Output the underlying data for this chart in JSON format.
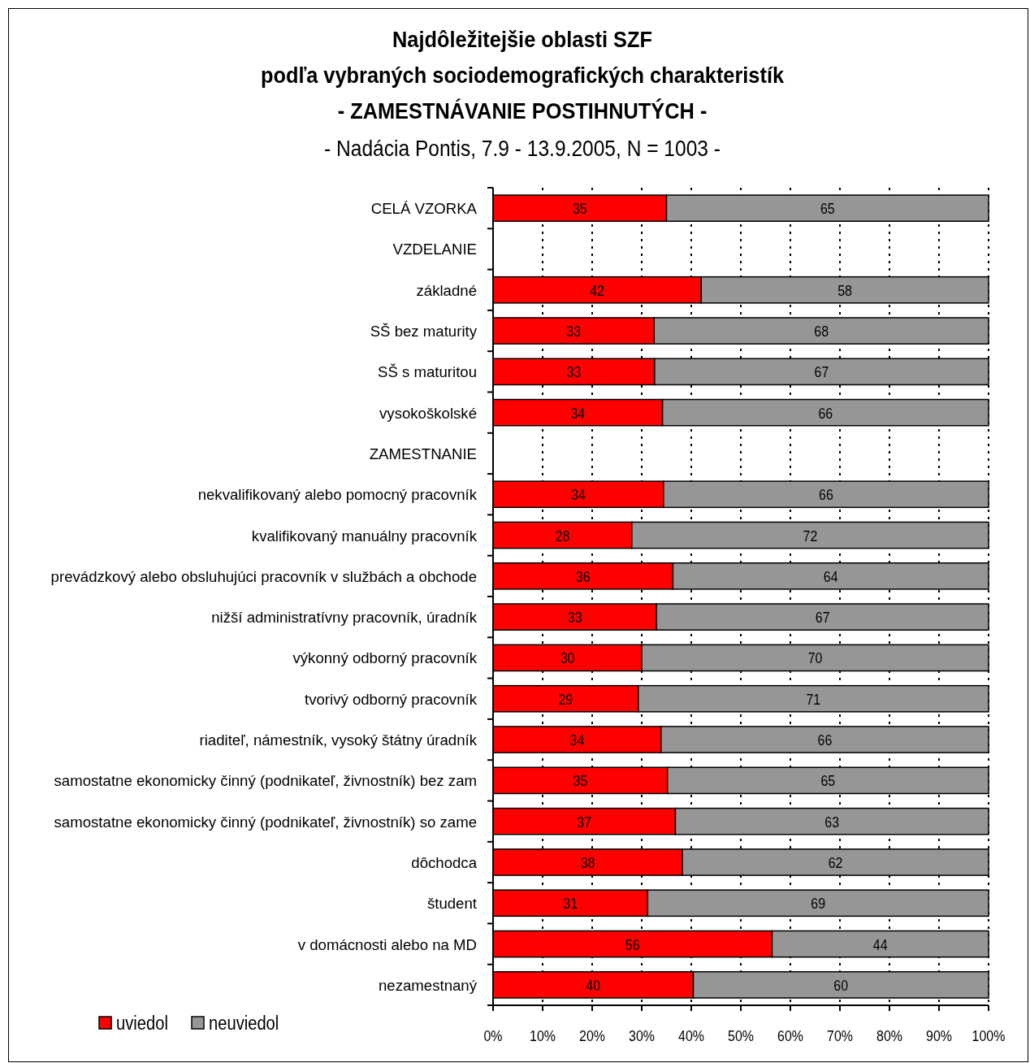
{
  "chart_data": {
    "type": "bar",
    "orientation": "horizontal",
    "stacked": true,
    "title": "Najdôležitejšie oblasti SZF\npodľa vybraných sociodemografických charakteristík\n- ZAMESTNÁVANIE POSTIHNUTÝCH -",
    "subtitle": "- Nadácia Pontis, 7.9 - 13.9.2005, N = 1003 -",
    "categories": [
      "CELÁ VZORKA",
      "VZDELANIE",
      "základné",
      "SŠ bez maturity",
      "SŠ s maturitou",
      "vysokoškolské",
      "ZAMESTNANIE",
      "nekvalifikovaný alebo pomocný pracovník",
      "kvalifikovaný manuálny pracovník",
      "prevádzkový alebo obsluhujúci pracovník v službách a obchode",
      "nižší administratívny pracovník, úradník",
      "výkonný odborný pracovník",
      "tvorivý odborný pracovník",
      "riaditeľ, námestník, vysoký štátny úradník",
      "samostatne ekonomicky činný (podnikateľ, živnostník) bez zam",
      "samostatne ekonomicky činný (podnikateľ, živnostník) so zame",
      "dôchodca",
      "študent",
      "v domácnosti alebo na MD",
      "nezamestnaný"
    ],
    "series": [
      {
        "name": "uviedol",
        "color": "#ff0000",
        "values": [
          35,
          null,
          42,
          32.5,
          32.6,
          34.2,
          null,
          34.4,
          28,
          36.3,
          33,
          30,
          29.3,
          33.9,
          35.2,
          36.8,
          38.2,
          31.2,
          56.3,
          40.4
        ],
        "value_labels": [
          "35",
          null,
          "42",
          "33",
          "33",
          "34",
          null,
          "34",
          "28",
          "36",
          "33",
          "30",
          "29",
          "34",
          "35",
          "37",
          "38",
          "31",
          "56",
          "40"
        ]
      },
      {
        "name": "neuviedol",
        "color": "#969696",
        "values": [
          65,
          null,
          58,
          67.5,
          67.4,
          65.8,
          null,
          65.6,
          72,
          63.7,
          67,
          70,
          70.7,
          66.1,
          64.8,
          63.2,
          61.8,
          68.8,
          43.7,
          59.6
        ],
        "value_labels": [
          "65",
          null,
          "58",
          "68",
          "67",
          "66",
          null,
          "66",
          "72",
          "64",
          "67",
          "70",
          "71",
          "66",
          "65",
          "63",
          "62",
          "69",
          "44",
          "60"
        ]
      }
    ],
    "xlim": [
      0,
      100
    ],
    "xticks": [
      {
        "value": 0,
        "label": "0%"
      },
      {
        "value": 10,
        "label": "10%"
      },
      {
        "value": 20,
        "label": "20%"
      },
      {
        "value": 30,
        "label": "30%"
      },
      {
        "value": 40,
        "label": "40%"
      },
      {
        "value": 50,
        "label": "50%"
      },
      {
        "value": 60,
        "label": "60%"
      },
      {
        "value": 70,
        "label": "70%"
      },
      {
        "value": 80,
        "label": "80%"
      },
      {
        "value": 90,
        "label": "90%"
      },
      {
        "value": 100,
        "label": "100%"
      }
    ],
    "grid": "x",
    "legend": "bottom left"
  }
}
